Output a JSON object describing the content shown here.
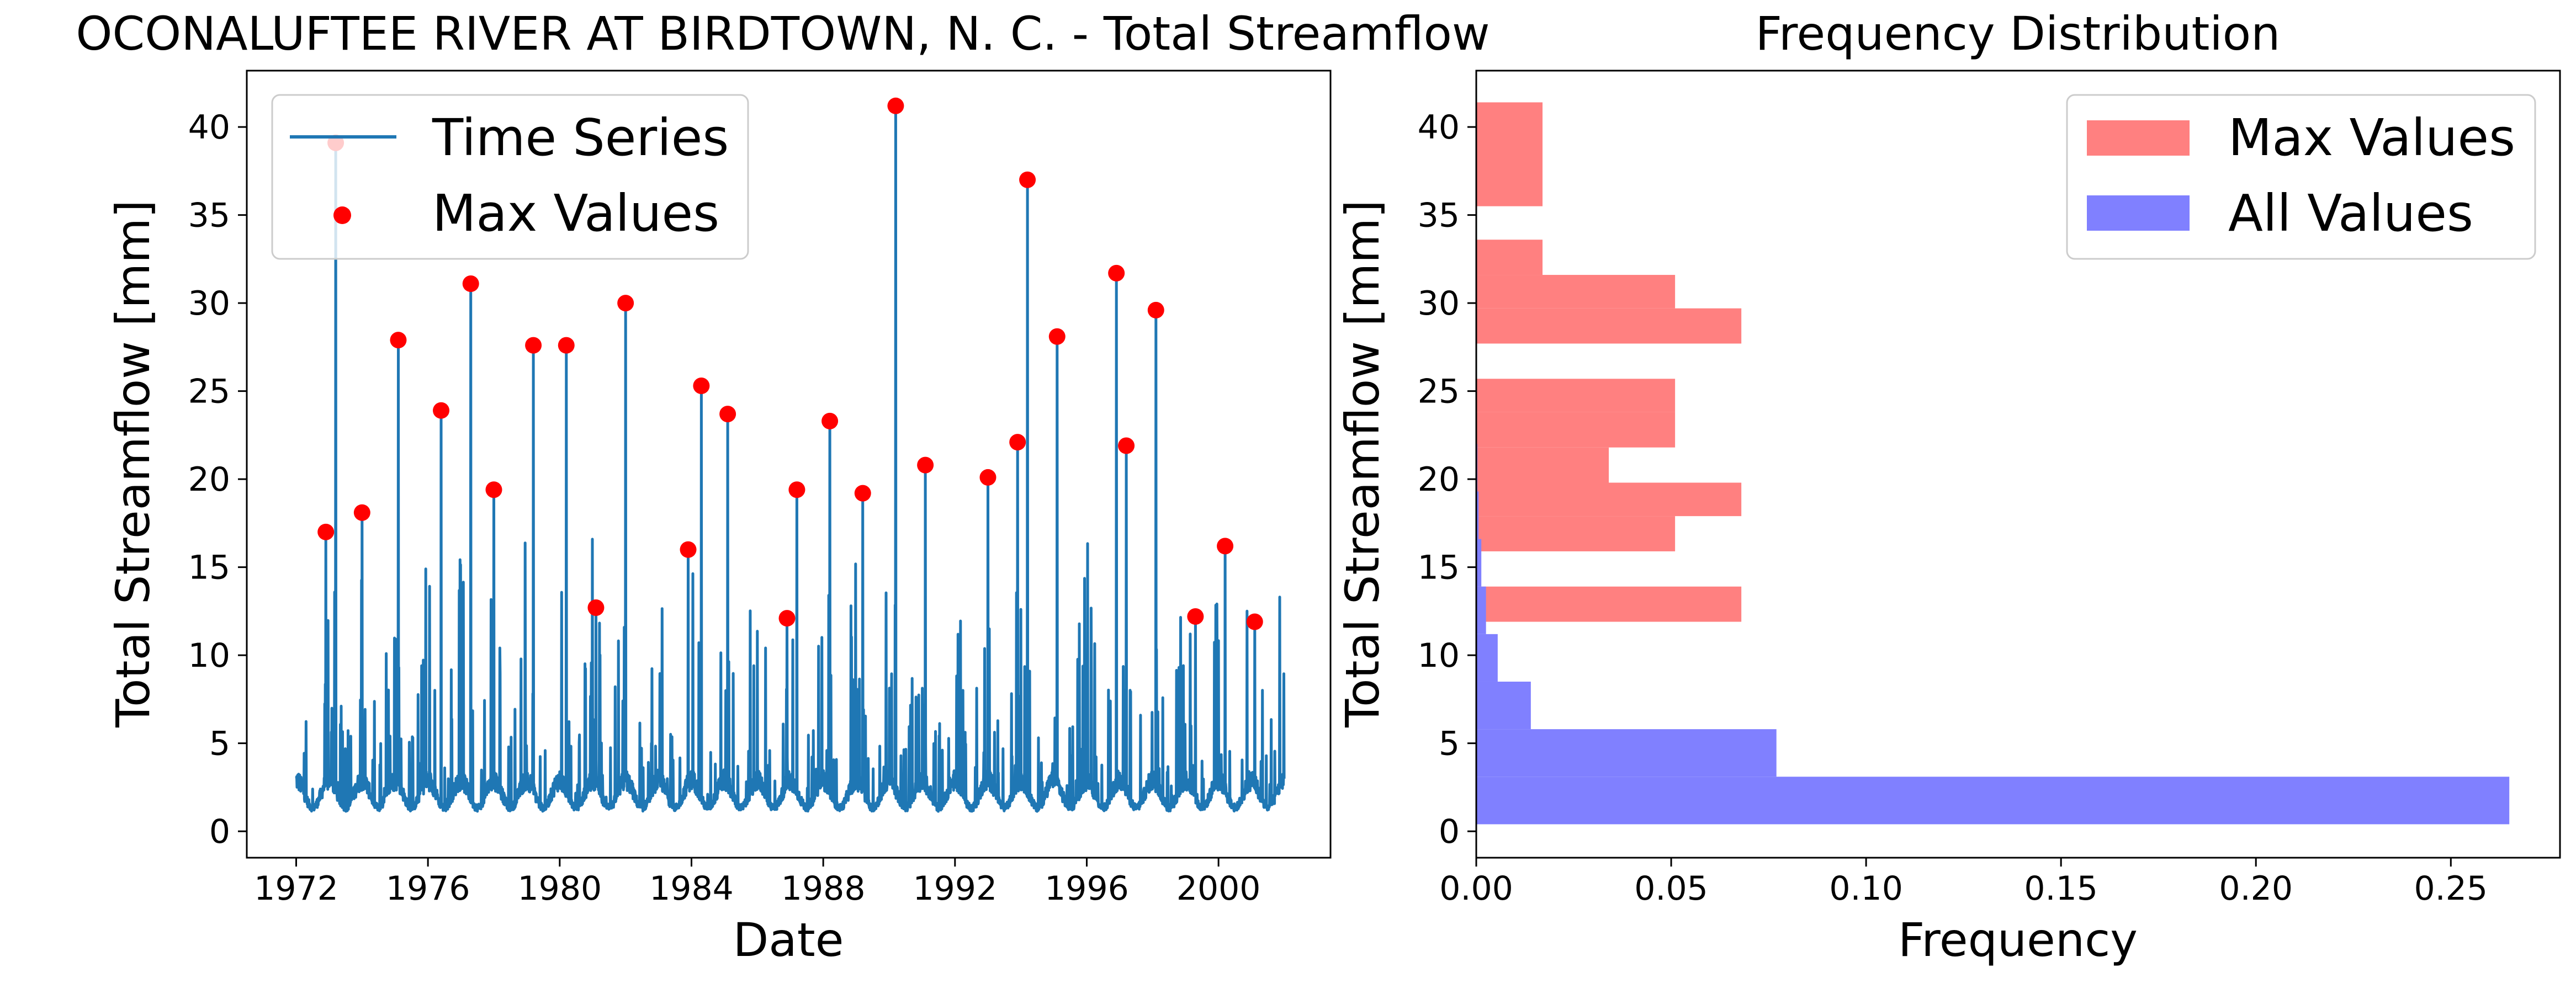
{
  "chart_data": [
    {
      "type": "line",
      "title": "OCONALUFTEE RIVER AT BIRDTOWN, N. C. - Total Streamflow",
      "xlabel": "Date",
      "ylabel": "Total Streamflow [mm]",
      "xlim": [
        1970.5,
        2003.4
      ],
      "ylim": [
        -1.5,
        43.2
      ],
      "x_ticks": [
        "1972",
        "1976",
        "1980",
        "1984",
        "1988",
        "1992",
        "1996",
        "2000"
      ],
      "y_ticks": [
        "0",
        "5",
        "10",
        "15",
        "20",
        "25",
        "30",
        "35",
        "40"
      ],
      "legend_placement": "upper-left",
      "series": [
        {
          "name": "Time Series",
          "style": "line",
          "color": "#1f77b4",
          "baseflow_band": [
            0.5,
            3.5
          ],
          "x_start": 1972.0,
          "x_end": 2002.0
        },
        {
          "name": "Max Values",
          "style": "scatter",
          "color": "#ff0000",
          "x": [
            1972.9,
            1973.2,
            1974.0,
            1975.1,
            1976.4,
            1977.3,
            1978.0,
            1979.2,
            1980.2,
            1981.1,
            1982.0,
            1983.9,
            1984.3,
            1985.1,
            1986.9,
            1987.2,
            1988.2,
            1989.2,
            1990.2,
            1991.1,
            1993.0,
            1993.9,
            1994.2,
            1995.1,
            1996.9,
            1997.2,
            1998.1,
            1999.3,
            2000.2,
            2001.1
          ],
          "y": [
            17.0,
            39.1,
            18.1,
            27.9,
            23.9,
            31.1,
            19.4,
            27.6,
            27.6,
            12.7,
            30.0,
            16.0,
            25.3,
            23.7,
            12.1,
            19.4,
            23.3,
            19.2,
            41.2,
            20.8,
            20.1,
            22.1,
            37.0,
            28.1,
            31.7,
            21.9,
            29.6,
            12.2,
            16.2,
            11.9
          ]
        }
      ]
    },
    {
      "type": "bar",
      "orientation": "horizontal",
      "title": "Frequency Distribution",
      "xlabel": "Frequency",
      "ylabel": "Total Streamflow [mm]",
      "xlim": [
        0,
        0.278
      ],
      "ylim": [
        -1.5,
        43.2
      ],
      "x_ticks": [
        "0.00",
        "0.05",
        "0.10",
        "0.15",
        "0.20",
        "0.25"
      ],
      "y_ticks": [
        "0",
        "5",
        "10",
        "15",
        "20",
        "25",
        "30",
        "35",
        "40"
      ],
      "legend_placement": "upper-right",
      "series": [
        {
          "name": "Max Values",
          "color": "#ff8080",
          "bins": [
            {
              "y0": 11.9,
              "y1": 13.9,
              "value": 0.068
            },
            {
              "y0": 15.9,
              "y1": 17.9,
              "value": 0.051
            },
            {
              "y0": 17.9,
              "y1": 19.8,
              "value": 0.068
            },
            {
              "y0": 19.8,
              "y1": 21.8,
              "value": 0.034
            },
            {
              "y0": 21.8,
              "y1": 23.8,
              "value": 0.051
            },
            {
              "y0": 23.8,
              "y1": 25.7,
              "value": 0.051
            },
            {
              "y0": 27.7,
              "y1": 29.7,
              "value": 0.068
            },
            {
              "y0": 29.7,
              "y1": 31.6,
              "value": 0.051
            },
            {
              "y0": 31.6,
              "y1": 33.6,
              "value": 0.017
            },
            {
              "y0": 35.5,
              "y1": 41.4,
              "value": 0.017
            }
          ]
        },
        {
          "name": "All Values",
          "color": "#8080ff",
          "bins": [
            {
              "y0": 0.4,
              "y1": 3.1,
              "value": 0.265
            },
            {
              "y0": 3.1,
              "y1": 5.8,
              "value": 0.077
            },
            {
              "y0": 5.8,
              "y1": 8.5,
              "value": 0.014
            },
            {
              "y0": 8.5,
              "y1": 11.2,
              "value": 0.0055
            },
            {
              "y0": 11.2,
              "y1": 13.9,
              "value": 0.0025
            },
            {
              "y0": 13.9,
              "y1": 16.6,
              "value": 0.0013
            },
            {
              "y0": 16.6,
              "y1": 19.3,
              "value": 0.0006
            },
            {
              "y0": 19.3,
              "y1": 22.0,
              "value": 0.0003
            }
          ]
        }
      ]
    }
  ]
}
